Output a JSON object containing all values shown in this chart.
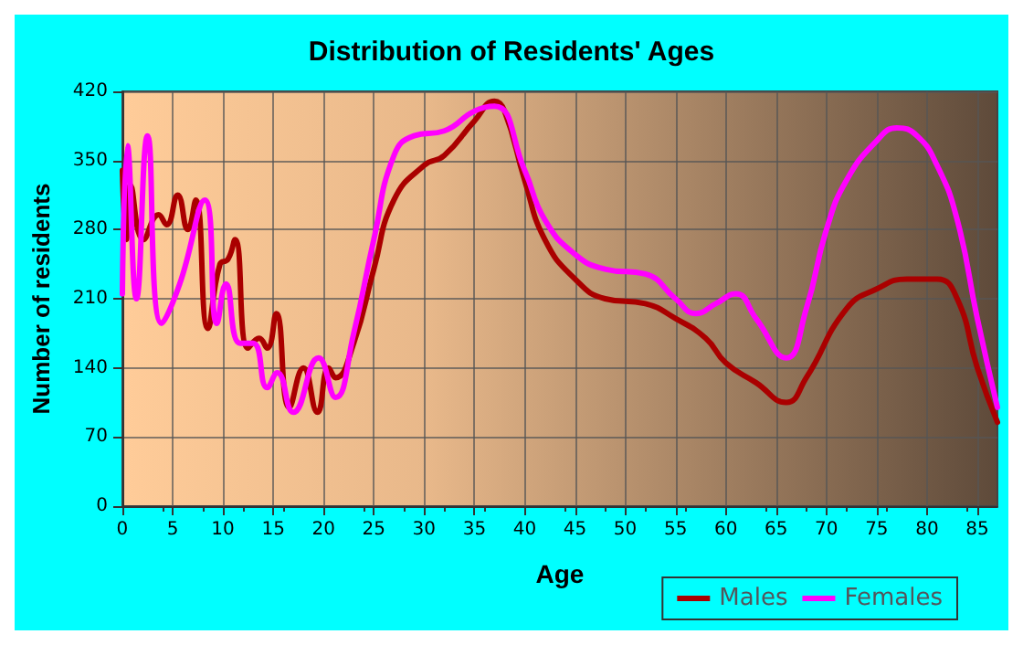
{
  "chart_data": {
    "type": "line",
    "title": "Distribution of Residents' Ages",
    "xlabel": "Age",
    "ylabel": "Number of residents",
    "xlim": [
      0,
      87
    ],
    "xticks": [
      0,
      5,
      10,
      15,
      20,
      25,
      30,
      35,
      40,
      45,
      50,
      55,
      60,
      65,
      70,
      75,
      80,
      85
    ],
    "ylim": [
      0,
      420
    ],
    "yticks": [
      0,
      70,
      140,
      210,
      280,
      350,
      420
    ],
    "grid": true,
    "legend": "bottom right",
    "marker": "none",
    "line_style": "solid",
    "series": [
      {
        "name": "Males",
        "color": "#aa0000",
        "x": [
          0,
          0.4,
          0.8,
          2.1,
          3.6,
          4.4,
          5.5,
          6.5,
          7.3,
          8.5,
          9.7,
          10.5,
          11.2,
          12.5,
          13.6,
          14.4,
          15.3,
          16.6,
          18,
          19.4,
          20.5,
          21.2,
          23,
          25,
          27,
          30,
          32,
          35,
          37,
          38,
          40,
          42,
          45,
          48,
          52,
          55,
          58,
          60,
          63,
          66,
          68,
          72,
          75,
          78,
          81,
          83,
          85,
          87
        ],
        "values": [
          340,
          270,
          325,
          270,
          295,
          285,
          315,
          280,
          310,
          180,
          245,
          250,
          270,
          160,
          170,
          160,
          195,
          100,
          140,
          95,
          140,
          130,
          165,
          240,
          310,
          345,
          355,
          390,
          410,
          400,
          330,
          270,
          230,
          210,
          205,
          190,
          170,
          145,
          125,
          105,
          130,
          200,
          220,
          230,
          230,
          210,
          140,
          85
        ]
      },
      {
        "name": "Females",
        "color": "#ff00ff",
        "x": [
          0,
          0.5,
          1.4,
          2.5,
          3.9,
          5.7,
          8.2,
          9.4,
          10.3,
          11.7,
          13,
          14.4,
          15.4,
          17,
          19.5,
          21.2,
          23,
          25,
          27,
          29,
          32,
          35,
          37,
          40,
          42,
          45,
          48,
          52,
          55,
          57,
          59,
          61,
          63,
          66,
          68,
          70,
          72,
          75,
          77,
          79,
          81,
          83,
          85,
          87
        ],
        "values": [
          215,
          365,
          210,
          375,
          185,
          225,
          310,
          185,
          225,
          165,
          165,
          120,
          135,
          95,
          150,
          110,
          175,
          270,
          355,
          375,
          380,
          400,
          405,
          340,
          290,
          255,
          240,
          235,
          210,
          195,
          205,
          215,
          190,
          150,
          200,
          280,
          330,
          370,
          383,
          375,
          345,
          290,
          190,
          100
        ]
      }
    ]
  }
}
